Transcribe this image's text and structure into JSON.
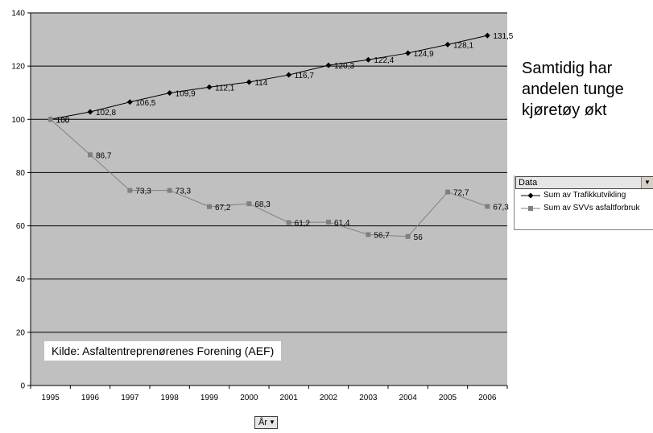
{
  "chart_data": {
    "type": "line",
    "title": "",
    "xlabel": "",
    "ylabel": "",
    "categories": [
      "1995",
      "1996",
      "1997",
      "1998",
      "1999",
      "2000",
      "2001",
      "2002",
      "2003",
      "2004",
      "2005",
      "2006"
    ],
    "ylim": [
      0,
      140
    ],
    "yticks": [
      0,
      20,
      40,
      60,
      80,
      100,
      120,
      140
    ],
    "grid": true,
    "series": [
      {
        "name": "Sum av Trafikkutvikling",
        "color": "#000000",
        "marker": "diamond",
        "values": [
          100,
          102.8,
          106.5,
          109.9,
          112.1,
          114,
          116.7,
          120.3,
          122.4,
          124.9,
          128.1,
          131.5
        ],
        "labels": [
          "100",
          "102,8",
          "106,5",
          "109,9",
          "112,1",
          "114",
          "116,7",
          "120,3",
          "122,4",
          "124,9",
          "128,1",
          "131,5"
        ]
      },
      {
        "name": "Sum av SVVs asfaltforbruk",
        "color": "#808080",
        "marker": "square",
        "values": [
          100,
          86.7,
          73.3,
          73.3,
          67.2,
          68.3,
          61.2,
          61.4,
          56.7,
          56,
          72.7,
          67.3
        ],
        "labels": [
          "100",
          "86,7",
          "73,3",
          "73,3",
          "67,2",
          "68,3",
          "61,2",
          "61,4",
          "56,7",
          "56",
          "72,7",
          "67,3"
        ]
      }
    ],
    "plot_background": "#c0c0c0",
    "legend_position": "right"
  },
  "source_note": "Kilde: Asfaltentreprenørenes Forening (AEF)",
  "side_note": "Samtidig har andelen tunge kjøretøy økt",
  "legend": {
    "header": "Data",
    "items": [
      "Sum av Trafikkutvikling",
      "Sum av SVVs asfaltforbruk"
    ]
  },
  "axis_field": {
    "label": "År"
  }
}
